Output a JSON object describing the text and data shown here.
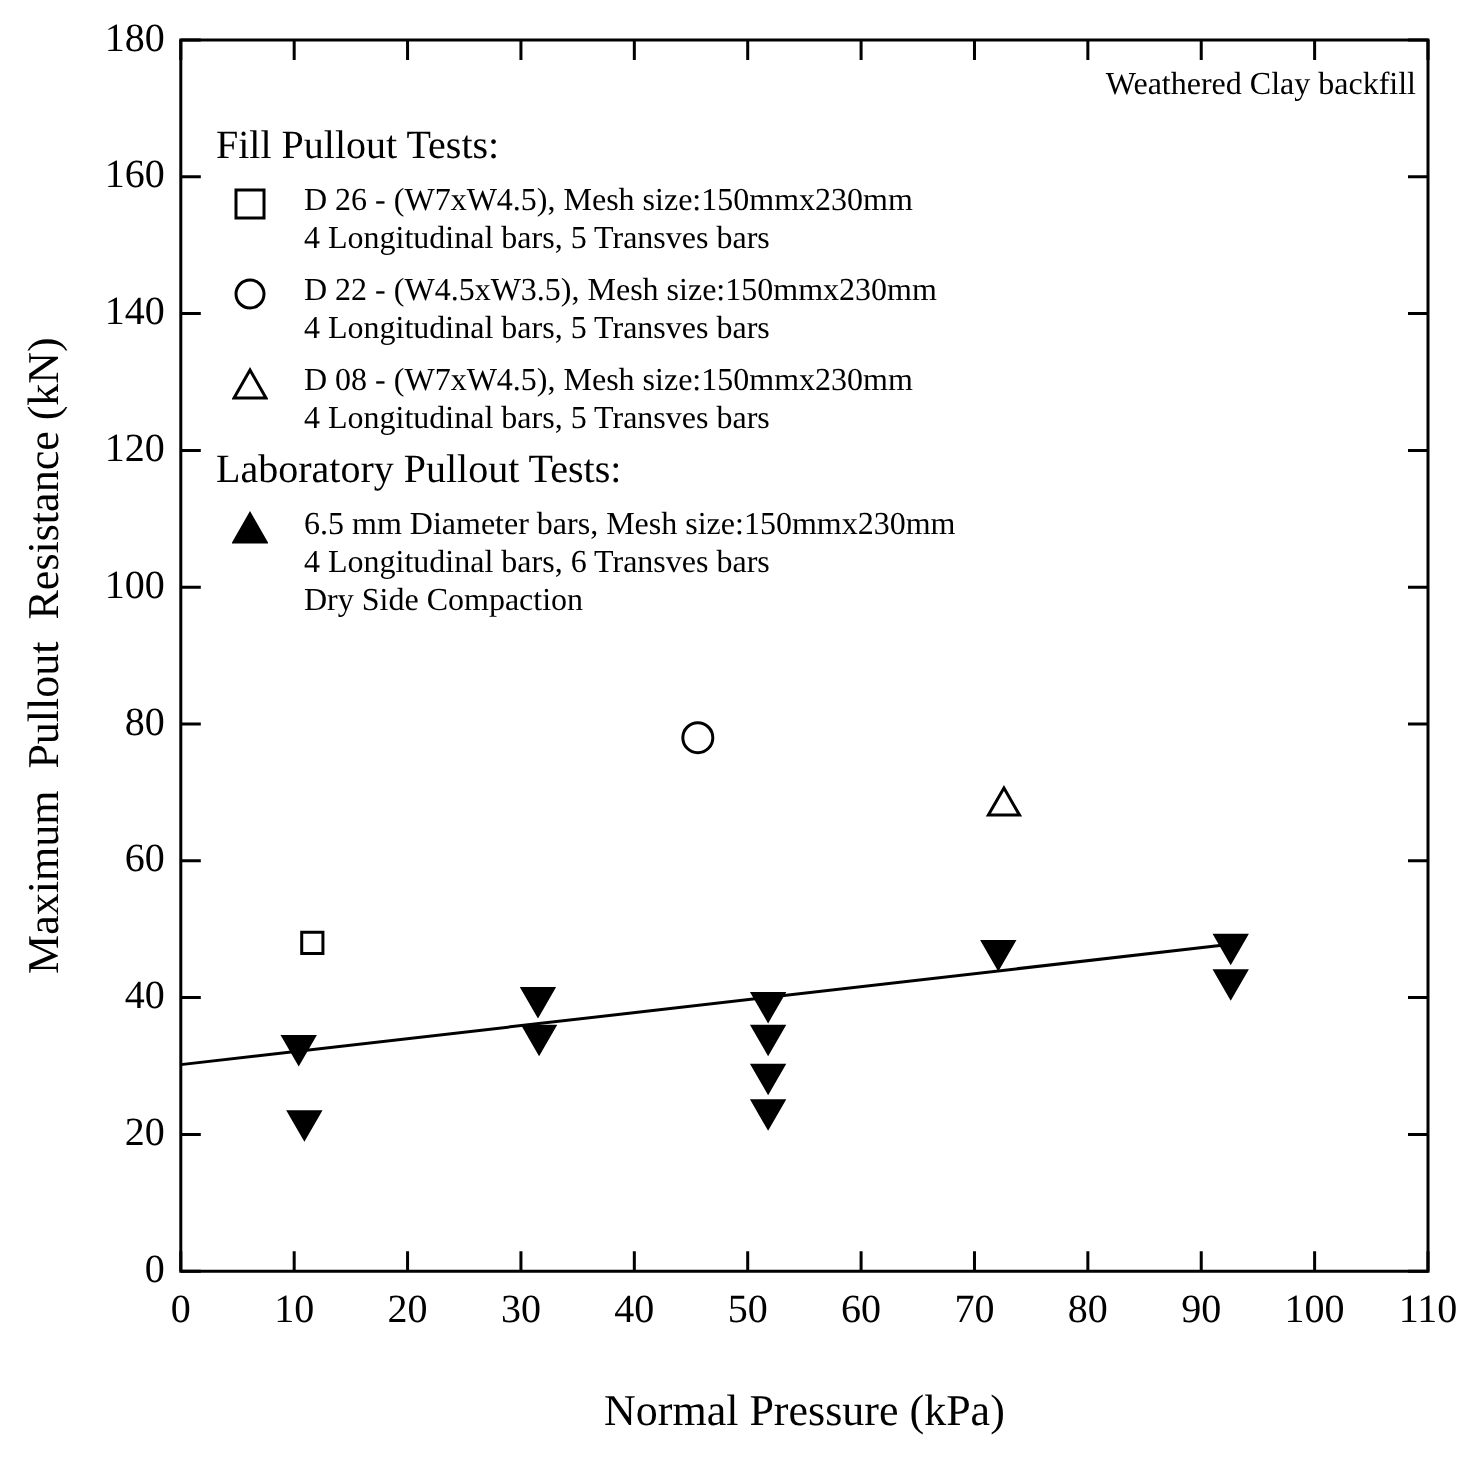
{
  "chart_data": {
    "type": "scatter",
    "xlabel": "Normal Pressure (kPa)",
    "ylabel": "Maximum  Pullout  Resistance (kN)",
    "xlim": [
      0,
      110
    ],
    "xticks": [
      0,
      10,
      20,
      30,
      40,
      50,
      60,
      70,
      80,
      90,
      100,
      110
    ],
    "ylim": [
      0,
      180
    ],
    "yticks": [
      0,
      20,
      40,
      60,
      80,
      100,
      120,
      140,
      160,
      180
    ],
    "grid": false,
    "legend": "top left",
    "annotations": [
      "Weathered Clay backfill",
      "Fill Pullout Tests:",
      "Laboratory Pullout Tests:"
    ],
    "series": [
      {
        "name": "D 26 - (W7xW4.5),  Mesh size:150mmx230mm\n4 Longitudinal bars, 5 Transves bars",
        "color": "#000000",
        "marker": "square",
        "x": [
          11.6
        ],
        "values": [
          48
        ]
      },
      {
        "name": "D 22 - (W4.5xW3.5),  Mesh size:150mmx230mm\n4 Longitudinal bars, 5 Transves bars",
        "color": "#000000",
        "marker": "circle",
        "x": [
          45.6
        ],
        "values": [
          78
        ]
      },
      {
        "name": "D 08 - (W7xW4.5),  Mesh size:150mmx230mm\n4 Longitudinal bars, 5 Transves bars",
        "color": "#000000",
        "marker": "triangle",
        "x": [
          72.6
        ],
        "values": [
          68
        ]
      },
      {
        "name": "6.5 mm Diameter bars,  Mesh size:150mmx230mm\n4 Longitudinal bars, 6 Transves bars\nDry Side Compaction",
        "color": "#000000",
        "marker": "triangle",
        "x": [
          10.4,
          10.9,
          31.5,
          31.6,
          51.8,
          51.8,
          51.8,
          51.8,
          72.1,
          92.6,
          92.6
        ],
        "values": [
          33,
          22,
          40,
          34.5,
          39.3,
          34.5,
          28.8,
          23.6,
          46.9,
          47.8,
          42.6
        ]
      },
      {
        "type": "line",
        "color": "#000000",
        "marker": "none",
        "line_style": "solid",
        "x": [
          0,
          92.6
        ],
        "values": [
          30.2,
          47.8
        ]
      }
    ]
  }
}
